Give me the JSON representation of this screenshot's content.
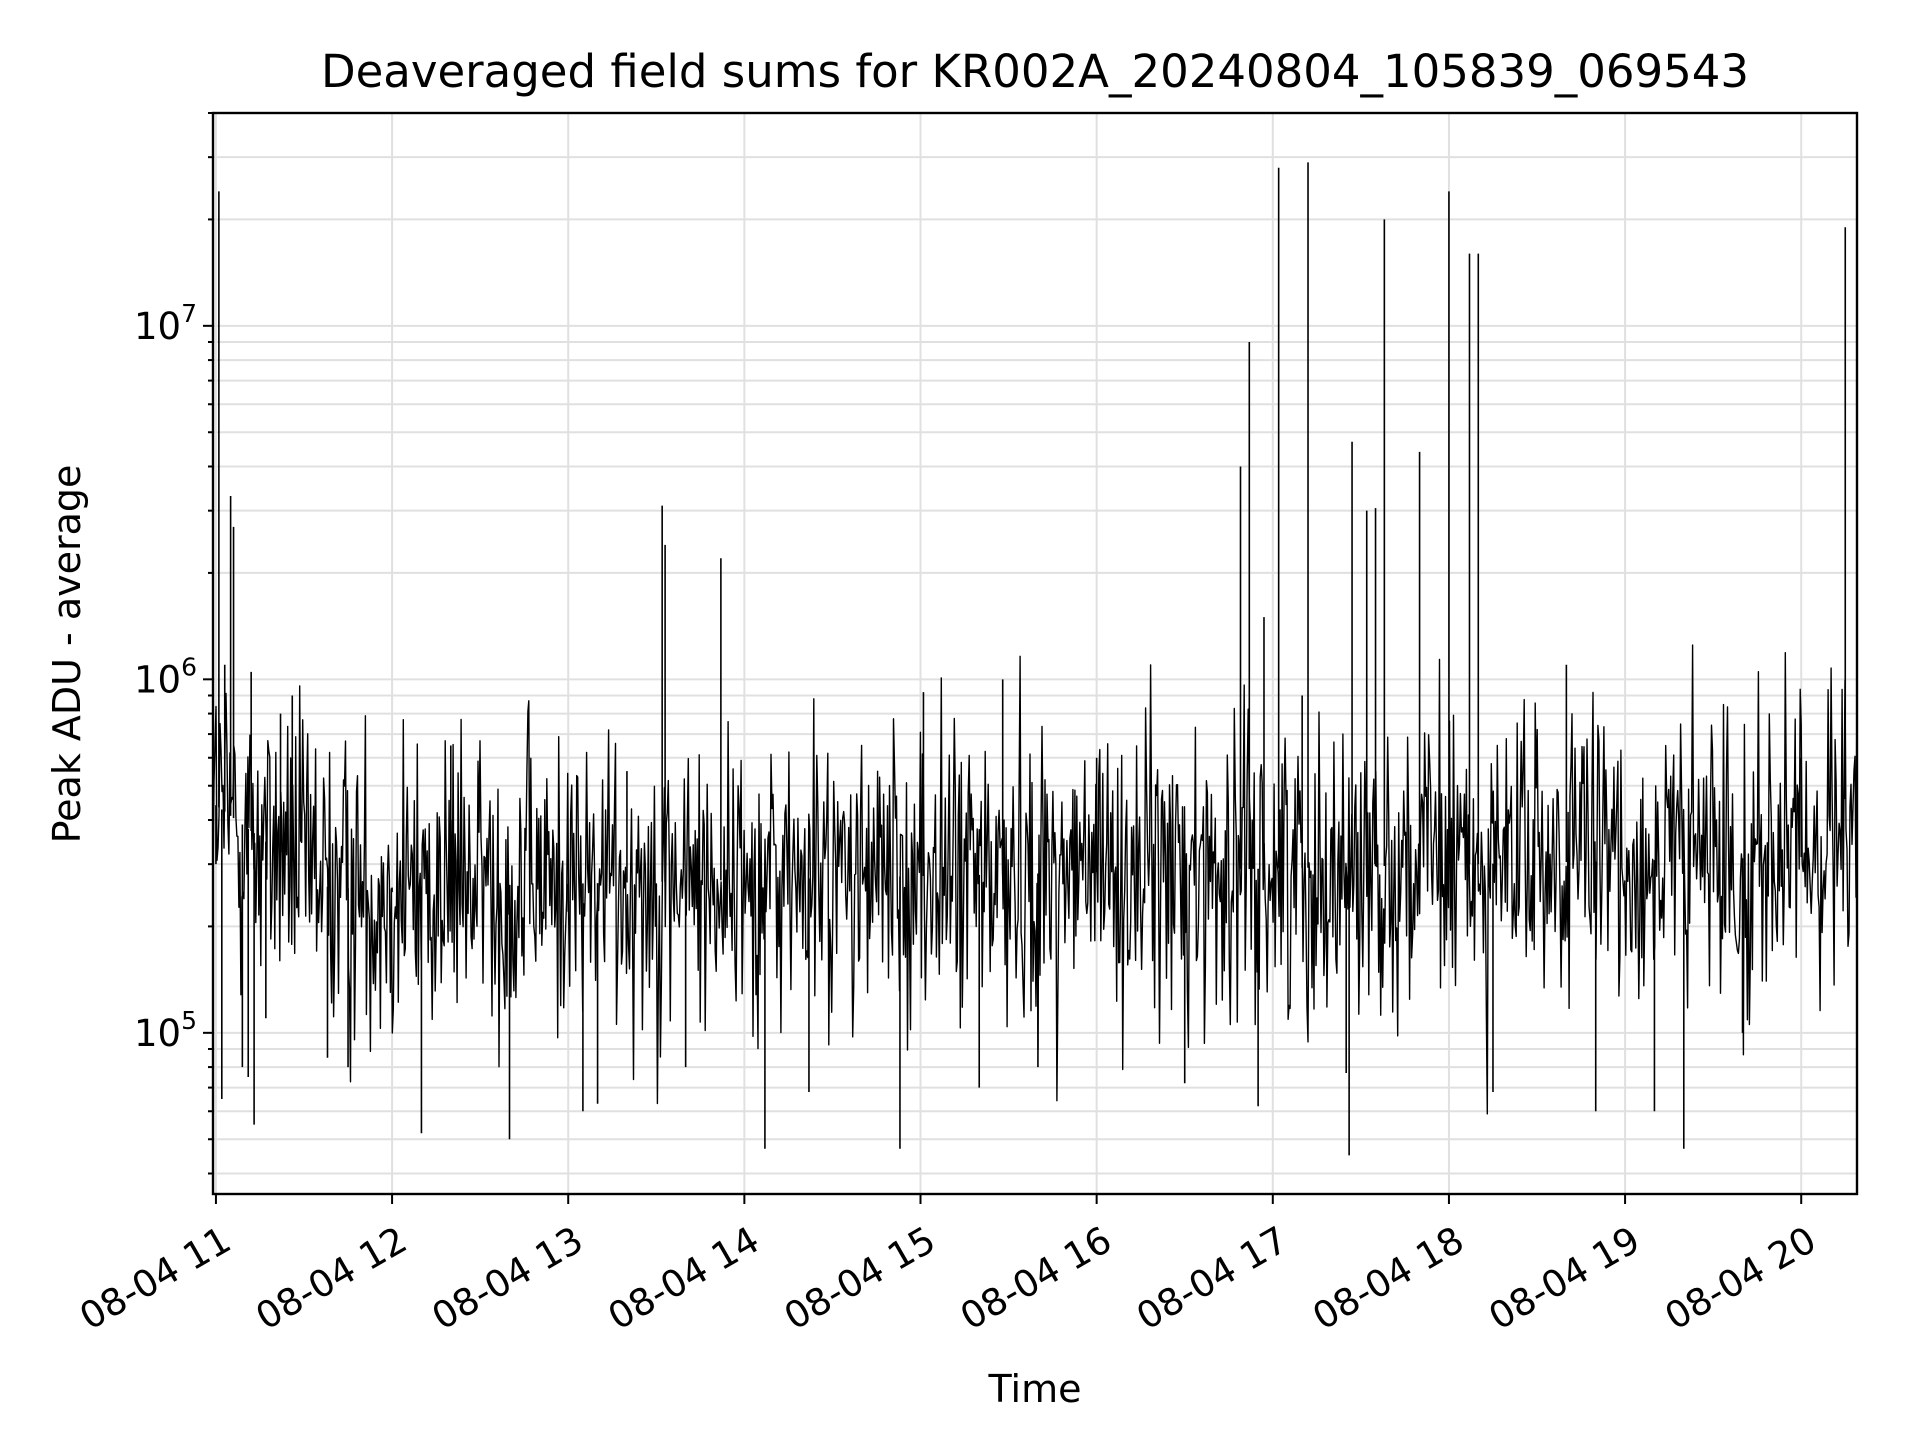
{
  "chart_data": {
    "type": "line",
    "title": "Deaveraged field sums for KR002A_20240804_105839_069543",
    "xlabel": "Time",
    "ylabel": "Peak ADU - average",
    "x_scale": "time",
    "y_scale": "log",
    "xlim": [
      "2024-08-04 10:59",
      "2024-08-04 20:19"
    ],
    "ylim": [
      35000,
      40000000
    ],
    "x_ticks": [
      {
        "value": "2024-08-04 11:00",
        "label": "08-04 11"
      },
      {
        "value": "2024-08-04 12:00",
        "label": "08-04 12"
      },
      {
        "value": "2024-08-04 13:00",
        "label": "08-04 13"
      },
      {
        "value": "2024-08-04 14:00",
        "label": "08-04 14"
      },
      {
        "value": "2024-08-04 15:00",
        "label": "08-04 15"
      },
      {
        "value": "2024-08-04 16:00",
        "label": "08-04 16"
      },
      {
        "value": "2024-08-04 17:00",
        "label": "08-04 17"
      },
      {
        "value": "2024-08-04 18:00",
        "label": "08-04 18"
      },
      {
        "value": "2024-08-04 19:00",
        "label": "08-04 19"
      },
      {
        "value": "2024-08-04 20:00",
        "label": "08-04 20"
      }
    ],
    "y_ticks": [
      {
        "value": 100000,
        "base": "10",
        "exp": "5"
      },
      {
        "value": 1000000,
        "base": "10",
        "exp": "6"
      },
      {
        "value": 10000000,
        "base": "10",
        "exp": "7"
      }
    ],
    "grid": true,
    "line_color": "#000000",
    "points": [
      [
        "2024-08-04 11:00",
        300000
      ],
      [
        "2024-08-04 11:01",
        24000000
      ],
      [
        "2024-08-04 11:02",
        65000
      ],
      [
        "2024-08-04 11:03",
        1100000
      ],
      [
        "2024-08-04 11:05",
        3300000
      ],
      [
        "2024-08-04 11:06",
        2700000
      ],
      [
        "2024-08-04 11:09",
        80000
      ],
      [
        "2024-08-04 11:11",
        75000
      ],
      [
        "2024-08-04 11:12",
        1050000
      ],
      [
        "2024-08-04 11:13",
        55000
      ],
      [
        "2024-08-04 11:17",
        110000
      ],
      [
        "2024-08-04 11:22",
        800000
      ],
      [
        "2024-08-04 11:26",
        900000
      ],
      [
        "2024-08-04 11:38",
        85000
      ],
      [
        "2024-08-04 11:45",
        80000
      ],
      [
        "2024-08-04 12:00",
        250000
      ],
      [
        "2024-08-04 12:10",
        52000
      ],
      [
        "2024-08-04 12:20",
        650000
      ],
      [
        "2024-08-04 12:40",
        50000
      ],
      [
        "2024-08-04 13:00",
        220000
      ],
      [
        "2024-08-04 13:05",
        60000
      ],
      [
        "2024-08-04 13:10",
        63000
      ],
      [
        "2024-08-04 13:20",
        550000
      ],
      [
        "2024-08-04 13:32",
        3100000
      ],
      [
        "2024-08-04 13:33",
        2400000
      ],
      [
        "2024-08-04 13:40",
        80000
      ],
      [
        "2024-08-04 13:52",
        2200000
      ],
      [
        "2024-08-04 14:07",
        47000
      ],
      [
        "2024-08-04 14:22",
        68000
      ],
      [
        "2024-08-04 14:53",
        47000
      ],
      [
        "2024-08-04 15:01",
        920000
      ],
      [
        "2024-08-04 15:20",
        70000
      ],
      [
        "2024-08-04 15:28",
        1000000
      ],
      [
        "2024-08-04 15:40",
        80000
      ],
      [
        "2024-08-04 16:00",
        600000
      ],
      [
        "2024-08-04 16:30",
        72000
      ],
      [
        "2024-08-04 16:49",
        4000000
      ],
      [
        "2024-08-04 16:52",
        9000000
      ],
      [
        "2024-08-04 16:55",
        62000
      ],
      [
        "2024-08-04 16:57",
        1500000
      ],
      [
        "2024-08-04 17:02",
        28000000
      ],
      [
        "2024-08-04 17:10",
        900000
      ],
      [
        "2024-08-04 17:12",
        29000000
      ],
      [
        "2024-08-04 17:25",
        77000
      ],
      [
        "2024-08-04 17:26",
        45000
      ],
      [
        "2024-08-04 17:27",
        4700000
      ],
      [
        "2024-08-04 17:32",
        3000000
      ],
      [
        "2024-08-04 17:35",
        3050000
      ],
      [
        "2024-08-04 17:38",
        20000000
      ],
      [
        "2024-08-04 17:50",
        4400000
      ],
      [
        "2024-08-04 18:00",
        24000000
      ],
      [
        "2024-08-04 18:07",
        16000000
      ],
      [
        "2024-08-04 18:10",
        16000000
      ],
      [
        "2024-08-04 18:15",
        68000
      ],
      [
        "2024-08-04 18:40",
        1100000
      ],
      [
        "2024-08-04 18:50",
        60000
      ],
      [
        "2024-08-04 19:10",
        60000
      ],
      [
        "2024-08-04 19:20",
        47000
      ],
      [
        "2024-08-04 19:40",
        100000
      ],
      [
        "2024-08-04 20:00",
        600000
      ],
      [
        "2024-08-04 20:15",
        19000000
      ],
      [
        "2024-08-04 20:19",
        600000
      ]
    ]
  }
}
